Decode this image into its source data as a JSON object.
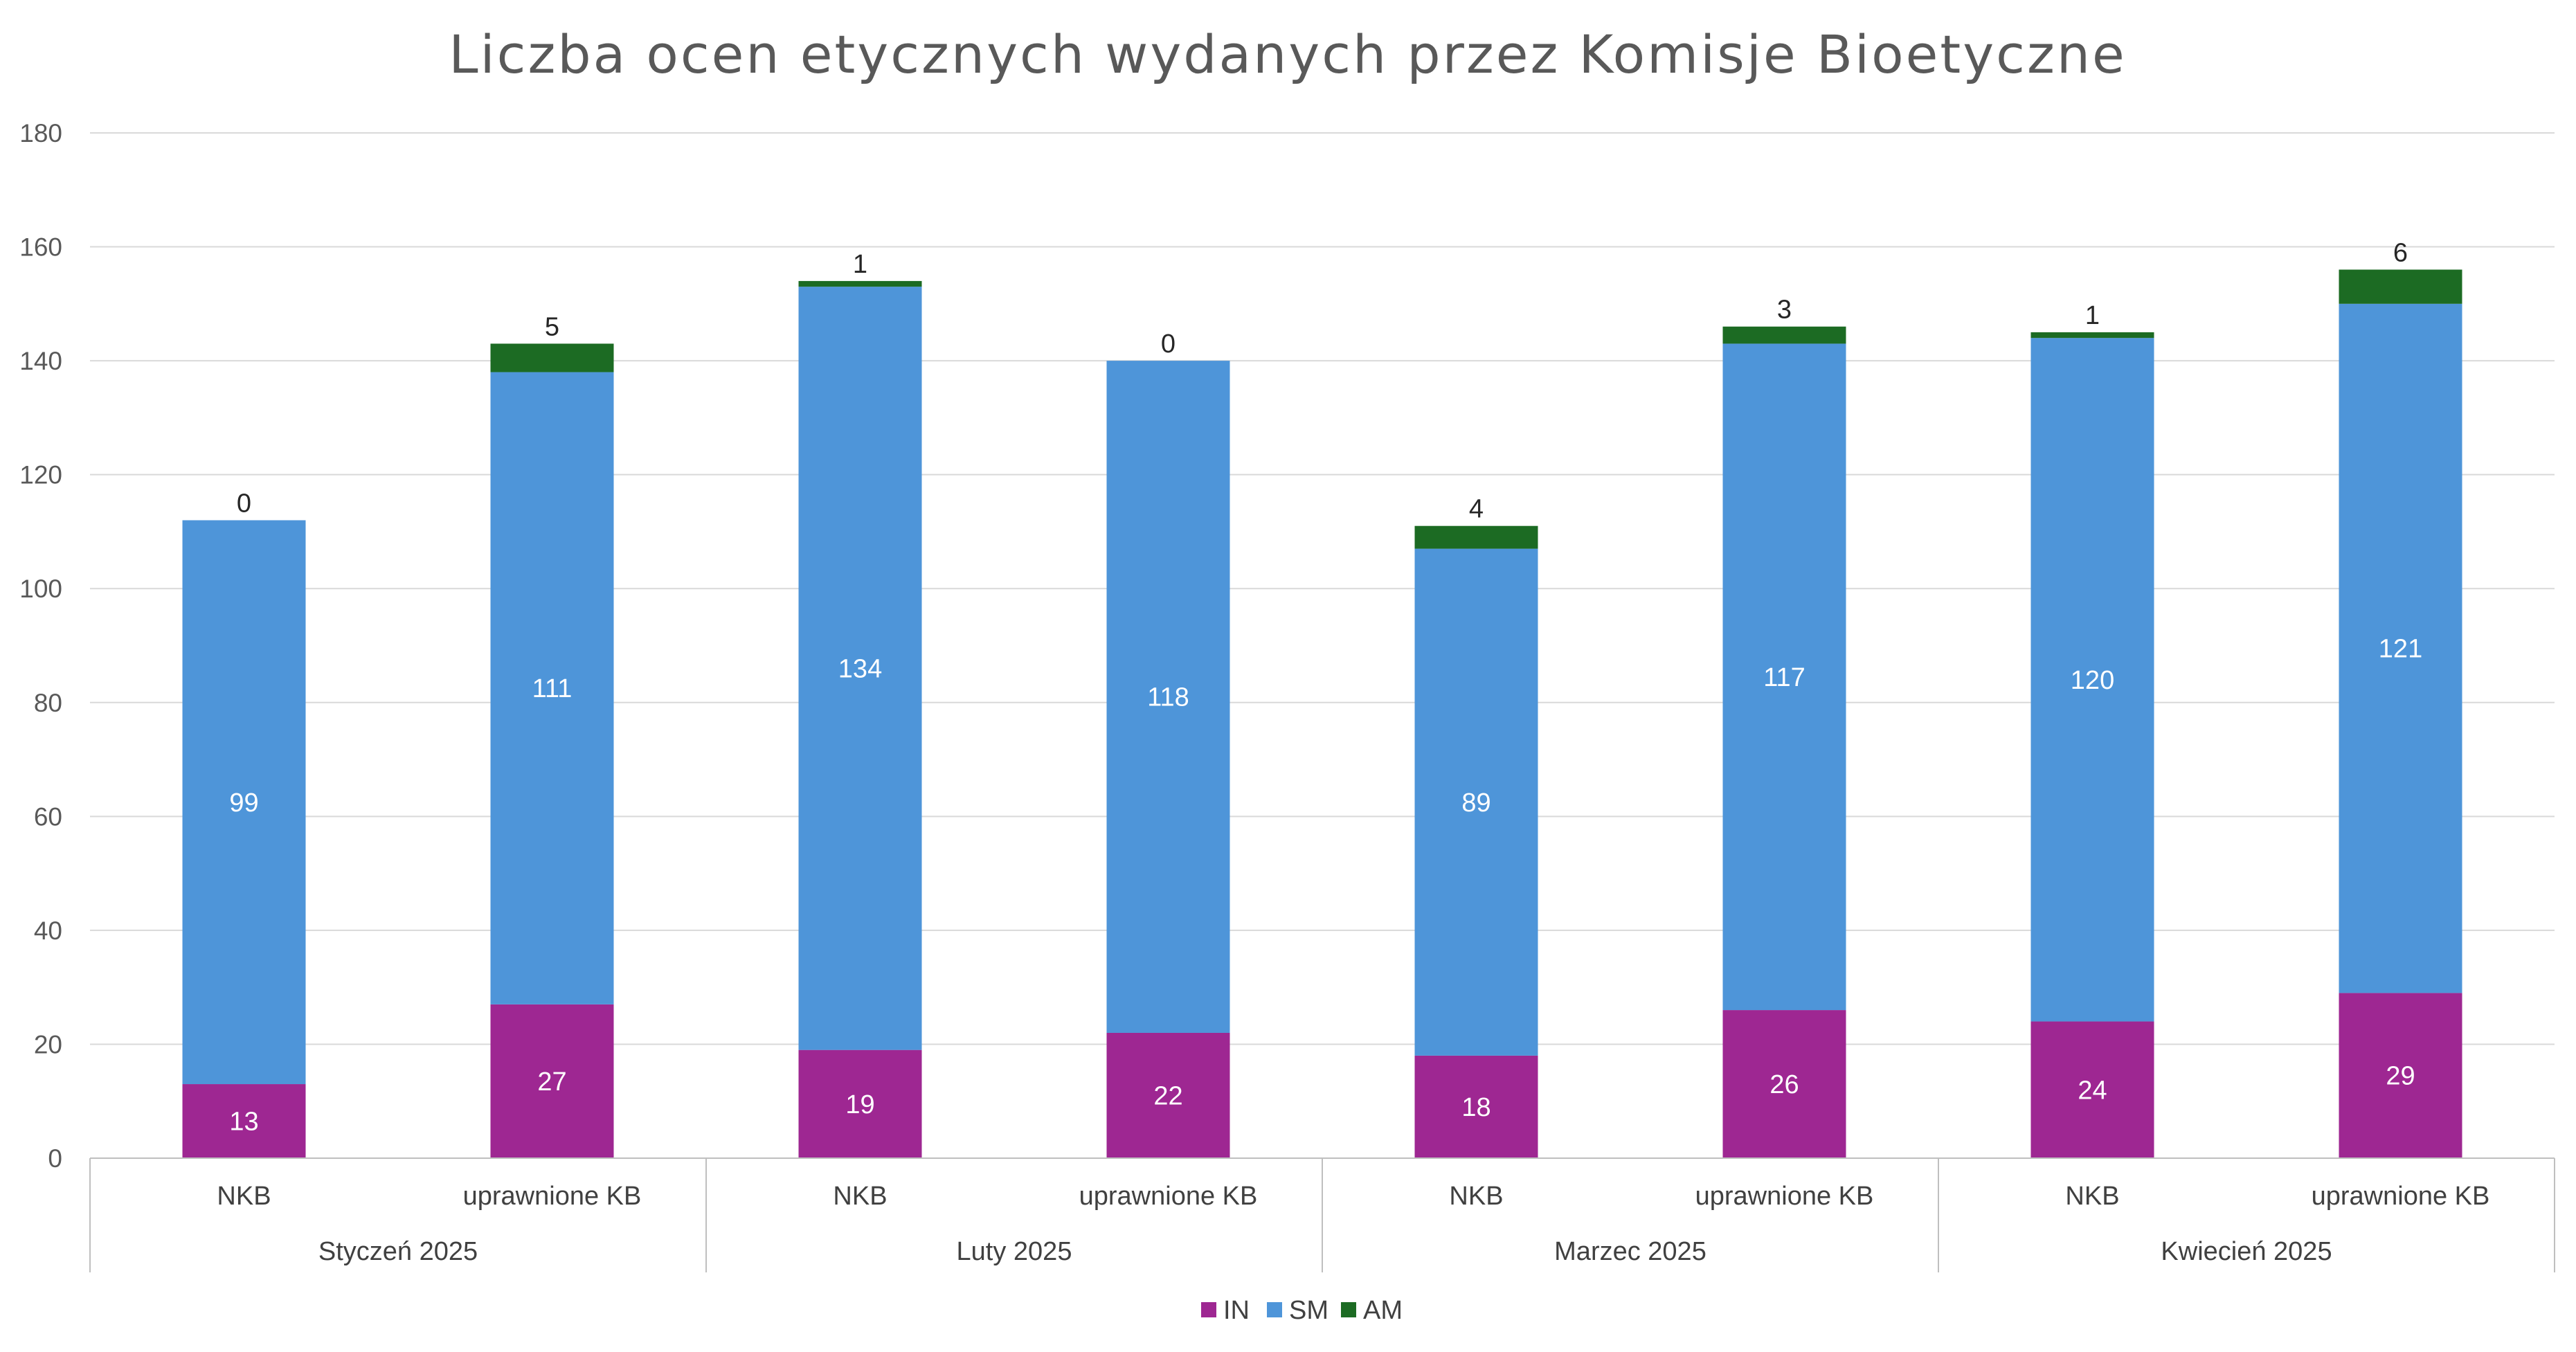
{
  "chart_data": {
    "type": "bar",
    "stacked": true,
    "title": "Liczba ocen etycznych wydanych przez Komisje Bioetyczne",
    "xlabel": "",
    "ylabel": "",
    "ylim": [
      0,
      180
    ],
    "yticks": [
      0,
      20,
      40,
      60,
      80,
      100,
      120,
      140,
      160,
      180
    ],
    "grid": true,
    "legend_position": "bottom",
    "groups": [
      "Styczeń 2025",
      "Luty 2025",
      "Marzec 2025",
      "Kwiecień 2025"
    ],
    "categories": [
      "NKB",
      "uprawnione KB",
      "NKB",
      "uprawnione KB",
      "NKB",
      "uprawnione KB",
      "NKB",
      "uprawnione KB"
    ],
    "series": [
      {
        "name": "IN",
        "color": "#9E2792",
        "values": [
          13,
          27,
          19,
          22,
          18,
          26,
          24,
          29
        ]
      },
      {
        "name": "SM",
        "color": "#4E95D9",
        "values": [
          99,
          111,
          134,
          118,
          89,
          117,
          120,
          121
        ]
      },
      {
        "name": "AM",
        "color": "#1C6B23",
        "values": [
          0,
          5,
          1,
          0,
          4,
          3,
          1,
          6
        ]
      }
    ]
  }
}
